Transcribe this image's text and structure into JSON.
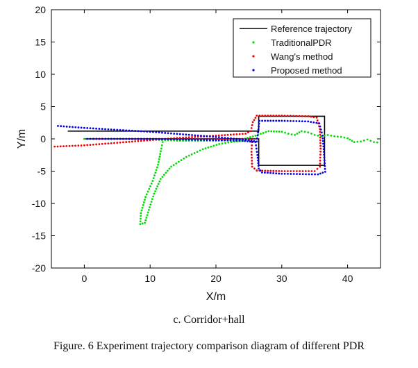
{
  "chart_data": {
    "type": "scatter",
    "xlabel": "X/m",
    "ylabel": "Y/m",
    "xlim": [
      -5,
      45
    ],
    "ylim": [
      -20,
      20
    ],
    "x_ticks": [
      0,
      10,
      20,
      30,
      40
    ],
    "y_ticks": [
      -20,
      -15,
      -10,
      -5,
      0,
      5,
      10,
      15,
      20
    ],
    "grid": false,
    "legend_position": "top-right",
    "series": [
      {
        "name": "Reference trajectory",
        "style": "line",
        "color": "#000000",
        "points": [
          [
            -2.5,
            1.2
          ],
          [
            26.5,
            1.2
          ],
          [
            26.5,
            3.5
          ],
          [
            36.5,
            3.5
          ],
          [
            36.5,
            -4.1
          ],
          [
            26.5,
            -4.1
          ],
          [
            26.5,
            0
          ],
          [
            0,
            0
          ]
        ]
      },
      {
        "name": "TraditionalPDR",
        "style": "dotted",
        "color": "#00dd00",
        "points": [
          [
            0,
            0
          ],
          [
            5,
            0
          ],
          [
            10,
            -0.1
          ],
          [
            15,
            -0.3
          ],
          [
            20,
            -0.3
          ],
          [
            24,
            -0.1
          ],
          [
            26,
            0.5
          ],
          [
            28,
            1.2
          ],
          [
            30,
            1.1
          ],
          [
            31,
            0.8
          ],
          [
            32,
            0.6
          ],
          [
            33,
            1.2
          ],
          [
            34,
            1.0
          ],
          [
            35,
            0.6
          ],
          [
            36,
            0.4
          ],
          [
            37,
            0.6
          ],
          [
            38,
            0.4
          ],
          [
            39,
            0.3
          ],
          [
            40,
            0.1
          ],
          [
            41,
            -0.5
          ],
          [
            42,
            -0.4
          ],
          [
            43,
            -0.1
          ],
          [
            44,
            -0.5
          ],
          [
            45,
            -0.6
          ]
        ],
        "branch": [
          [
            8.5,
            -13.2
          ],
          [
            9.2,
            -13.0
          ],
          [
            9.8,
            -11.0
          ],
          [
            10.6,
            -8.5
          ],
          [
            11.6,
            -6.2
          ],
          [
            13.2,
            -4.3
          ],
          [
            15.5,
            -2.8
          ],
          [
            18.0,
            -1.6
          ],
          [
            20.5,
            -0.8
          ],
          [
            22.8,
            -0.4
          ],
          [
            24.5,
            -0.3
          ]
        ],
        "branch2": [
          [
            8.5,
            -13.2
          ],
          [
            8.6,
            -11.5
          ],
          [
            9.3,
            -9.0
          ],
          [
            10.4,
            -6.5
          ],
          [
            11.2,
            -4.0
          ],
          [
            11.7,
            -1.5
          ],
          [
            12.0,
            0.0
          ]
        ]
      },
      {
        "name": "Wang's method",
        "style": "dotted",
        "color": "#ee0000",
        "points": [
          [
            -4.5,
            -1.2
          ],
          [
            0,
            -1.0
          ],
          [
            5,
            -0.6
          ],
          [
            10,
            -0.2
          ],
          [
            15,
            0.2
          ],
          [
            20,
            0.5
          ],
          [
            24.5,
            0.8
          ],
          [
            25.3,
            1.2
          ],
          [
            25.6,
            2.6
          ],
          [
            26.2,
            3.6
          ],
          [
            30,
            3.6
          ],
          [
            34,
            3.5
          ],
          [
            35.3,
            3.3
          ],
          [
            35.8,
            1.5
          ],
          [
            35.9,
            -1.5
          ],
          [
            35.8,
            -4.3
          ],
          [
            35.0,
            -5.0
          ],
          [
            30,
            -5.0
          ],
          [
            26.2,
            -4.9
          ],
          [
            25.5,
            -4.3
          ],
          [
            25.4,
            -2.0
          ],
          [
            25.5,
            0.0
          ],
          [
            24.0,
            0.0
          ],
          [
            20,
            0.0
          ],
          [
            15,
            0.0
          ],
          [
            10,
            0.0
          ],
          [
            5,
            0.0
          ],
          [
            1,
            0.0
          ]
        ]
      },
      {
        "name": "Proposed method",
        "style": "dotted",
        "color": "#0000ee",
        "points": [
          [
            -4,
            2.0
          ],
          [
            0,
            1.7
          ],
          [
            5,
            1.4
          ],
          [
            10,
            1.1
          ],
          [
            15,
            0.7
          ],
          [
            20,
            0.3
          ],
          [
            25.0,
            -0.2
          ],
          [
            26.2,
            -0.4
          ],
          [
            26.4,
            1.0
          ],
          [
            26.6,
            2.8
          ],
          [
            30,
            2.8
          ],
          [
            34,
            2.7
          ],
          [
            35.7,
            2.4
          ],
          [
            36.2,
            0.5
          ],
          [
            36.4,
            -2.0
          ],
          [
            36.6,
            -5.1
          ],
          [
            35.5,
            -5.5
          ],
          [
            30,
            -5.4
          ],
          [
            27.0,
            -5.2
          ],
          [
            26.5,
            -4.6
          ],
          [
            26.3,
            -2.5
          ],
          [
            26.0,
            -0.5
          ],
          [
            24.0,
            -0.3
          ],
          [
            20,
            -0.2
          ],
          [
            15,
            -0.1
          ],
          [
            10,
            0.0
          ],
          [
            5,
            0.0
          ],
          [
            0,
            0.0
          ]
        ]
      }
    ]
  },
  "captions": {
    "subcaption": "c. Corridor+hall",
    "figure_caption": "Figure. 6    Experiment trajectory comparison diagram of different PDR"
  }
}
